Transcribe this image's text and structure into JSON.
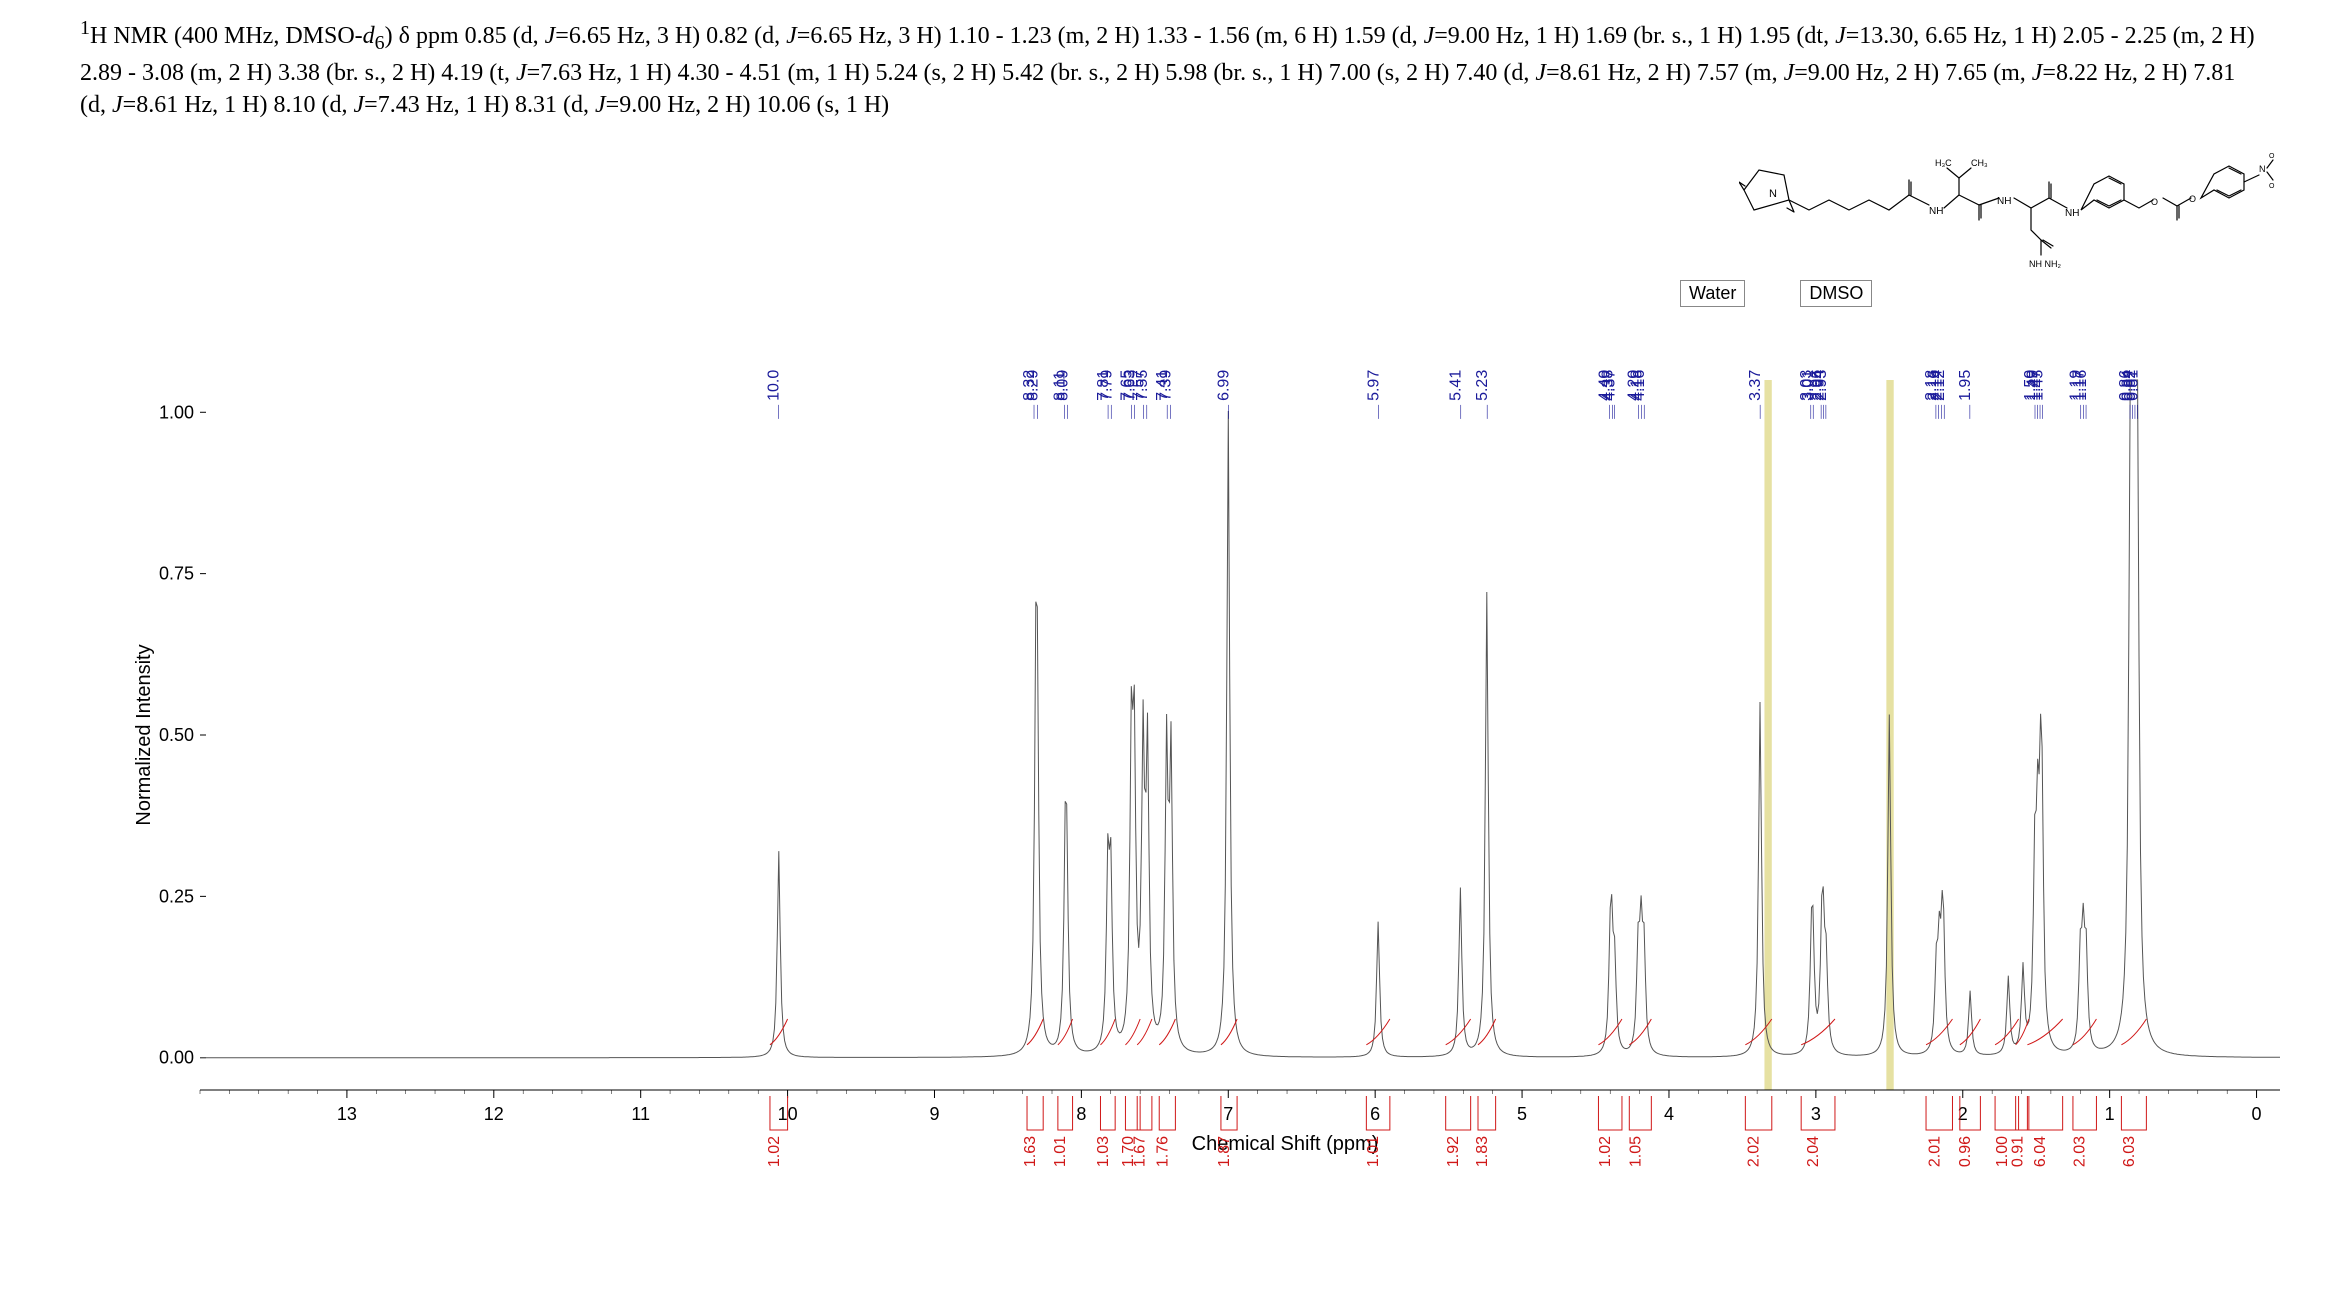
{
  "header": {
    "text_html": "<sup>1</sup>H NMR (400 MHz, DMSO-<i>d</i><sub>6</sub>) δ ppm 0.85 (d, <i>J</i>=6.65 Hz, 3 H) 0.82 (d, <i>J</i>=6.65 Hz, 3 H) 1.10 - 1.23 (m, 2 H) 1.33 - 1.56 (m, 6 H) 1.59 (d,  <i>J</i>=9.00 Hz, 1 H) 1.69 (br. s., 1 H) 1.95 (dt,  <i>J</i>=13.30, 6.65 Hz, 1 H) 2.05 - 2.25 (m, 2 H) 2.89 - 3.08 (m, 2 H) 3.38 (br. s., 2 H) 4.19 (t,  <i>J</i>=7.63 Hz, 1 H) 4.30 - 4.51 (m, 1 H) 5.24 (s, 2 H) 5.42 (br. s., 2 H) 5.98 (br. s., 1 H) 7.00 (s, 2 H) 7.40 (d,  <i>J</i>=8.61 Hz, 2 H) 7.57 (m, <i>J</i>=9.00 Hz, 2 H) 7.65 (m, <i>J</i>=8.22 Hz, 2 H) 7.81 (d, <i>J</i>=8.61 Hz, 1 H) 8.10 (d, <i>J</i>=7.43 Hz, 1 H) 8.31 (d, <i>J</i>=9.00 Hz, 2 H) 10.06 (s, 1 H)"
  },
  "structure_label": "Molecular structure (maleimide-linker-Val-Cit-PAB-pNP carbonate)",
  "solvents": {
    "water": "Water",
    "dmso": "DMSO"
  },
  "chart": {
    "type": "line",
    "xlabel": "Chemical Shift (ppm)",
    "ylabel": "Normalized Intensity",
    "xlim": [
      14,
      -0.5
    ],
    "ylim": [
      -0.05,
      1.05
    ],
    "yticks": [
      0,
      0.25,
      0.5,
      0.75,
      1.0
    ],
    "xticks": [
      13,
      12,
      11,
      10,
      9,
      8,
      7,
      6,
      5,
      4,
      3,
      2,
      1,
      0
    ],
    "minor_xtick_step": 0.2,
    "background_color": "#ffffff",
    "axis_color": "#000000",
    "spectrum_color": "#555555",
    "integral_curve_color": "#d01818",
    "highlight_color": "#dcd47a",
    "highlights": [
      {
        "from": 3.35,
        "to": 3.3
      },
      {
        "from": 2.52,
        "to": 2.47
      }
    ],
    "peak_labels": [
      "10.0621",
      "8.3224",
      "8.2998",
      "8.1138",
      "8.0952",
      "7.8182",
      "7.7966",
      "7.6586",
      "7.6380",
      "7.5773",
      "7.5548",
      "7.4158",
      "7.3942",
      "6.9977",
      "5.9785",
      "5.4175",
      "5.2374",
      "4.4042",
      "4.3856",
      "4.3719",
      "4.2065",
      "4.1869",
      "4.1683",
      "3.3792",
      "3.0346",
      "3.0179",
      "2.9641",
      "2.9484",
      "2.9318",
      "2.1828",
      "2.1642",
      "2.1446",
      "2.1260",
      "1.9517",
      "1.5082",
      "1.4916",
      "1.4740",
      "1.4563",
      "1.1969",
      "1.1783",
      "1.1607",
      "0.8611",
      "0.8444",
      "0.8278",
      "0.8112"
    ],
    "peaks": [
      {
        "cs": 10.06,
        "h": 0.32
      },
      {
        "cs": 8.31,
        "h": 0.45
      },
      {
        "cs": 8.3,
        "h": 0.43
      },
      {
        "cs": 8.11,
        "h": 0.25
      },
      {
        "cs": 8.1,
        "h": 0.24
      },
      {
        "cs": 7.82,
        "h": 0.27
      },
      {
        "cs": 7.8,
        "h": 0.26
      },
      {
        "cs": 7.66,
        "h": 0.44
      },
      {
        "cs": 7.64,
        "h": 0.43
      },
      {
        "cs": 7.58,
        "h": 0.46
      },
      {
        "cs": 7.55,
        "h": 0.45
      },
      {
        "cs": 7.42,
        "h": 0.46
      },
      {
        "cs": 7.39,
        "h": 0.45
      },
      {
        "cs": 7.0,
        "h": 1.0
      },
      {
        "cs": 5.98,
        "h": 0.21
      },
      {
        "cs": 5.42,
        "h": 0.26
      },
      {
        "cs": 5.24,
        "h": 0.72
      },
      {
        "cs": 4.4,
        "h": 0.13
      },
      {
        "cs": 4.39,
        "h": 0.14
      },
      {
        "cs": 4.37,
        "h": 0.13
      },
      {
        "cs": 4.21,
        "h": 0.15
      },
      {
        "cs": 4.19,
        "h": 0.17
      },
      {
        "cs": 4.17,
        "h": 0.15
      },
      {
        "cs": 3.38,
        "h": 0.55
      },
      {
        "cs": 3.03,
        "h": 0.14
      },
      {
        "cs": 3.02,
        "h": 0.14
      },
      {
        "cs": 2.96,
        "h": 0.14
      },
      {
        "cs": 2.95,
        "h": 0.14
      },
      {
        "cs": 2.93,
        "h": 0.13
      },
      {
        "cs": 2.5,
        "h": 0.53
      },
      {
        "cs": 2.18,
        "h": 0.12
      },
      {
        "cs": 2.16,
        "h": 0.14
      },
      {
        "cs": 2.14,
        "h": 0.14
      },
      {
        "cs": 2.13,
        "h": 0.12
      },
      {
        "cs": 1.95,
        "h": 0.1
      },
      {
        "cs": 1.69,
        "h": 0.12
      },
      {
        "cs": 1.59,
        "h": 0.13
      },
      {
        "cs": 1.51,
        "h": 0.26
      },
      {
        "cs": 1.49,
        "h": 0.28
      },
      {
        "cs": 1.47,
        "h": 0.28
      },
      {
        "cs": 1.46,
        "h": 0.26
      },
      {
        "cs": 1.2,
        "h": 0.14
      },
      {
        "cs": 1.18,
        "h": 0.16
      },
      {
        "cs": 1.16,
        "h": 0.14
      },
      {
        "cs": 0.86,
        "h": 0.76
      },
      {
        "cs": 0.84,
        "h": 0.78
      },
      {
        "cs": 0.83,
        "h": 0.76
      },
      {
        "cs": 0.81,
        "h": 0.72
      }
    ],
    "integrals": [
      {
        "from": 10.12,
        "to": 10.0,
        "value": "1.02"
      },
      {
        "from": 8.37,
        "to": 8.26,
        "value": "1.63"
      },
      {
        "from": 8.16,
        "to": 8.06,
        "value": "1.01"
      },
      {
        "from": 7.87,
        "to": 7.77,
        "value": "1.03"
      },
      {
        "from": 7.7,
        "to": 7.6,
        "value": "1.70"
      },
      {
        "from": 7.62,
        "to": 7.52,
        "value": "1.67"
      },
      {
        "from": 7.47,
        "to": 7.36,
        "value": "1.76"
      },
      {
        "from": 7.05,
        "to": 6.94,
        "value": "1.87"
      },
      {
        "from": 6.06,
        "to": 5.9,
        "value": "1.01"
      },
      {
        "from": 5.52,
        "to": 5.35,
        "value": "1.92"
      },
      {
        "from": 5.3,
        "to": 5.18,
        "value": "1.83"
      },
      {
        "from": 4.48,
        "to": 4.32,
        "value": "1.02"
      },
      {
        "from": 4.27,
        "to": 4.12,
        "value": "1.05"
      },
      {
        "from": 3.48,
        "to": 3.3,
        "value": "2.02"
      },
      {
        "from": 3.1,
        "to": 2.87,
        "value": "2.04"
      },
      {
        "from": 2.25,
        "to": 2.07,
        "value": "2.01"
      },
      {
        "from": 2.02,
        "to": 1.88,
        "value": "0.96"
      },
      {
        "from": 1.78,
        "to": 1.62,
        "value": "1.00"
      },
      {
        "from": 1.64,
        "to": 1.55,
        "value": "0.91"
      },
      {
        "from": 1.56,
        "to": 1.32,
        "value": "6.04"
      },
      {
        "from": 1.25,
        "to": 1.09,
        "value": "2.03"
      },
      {
        "from": 0.92,
        "to": 0.75,
        "value": "6.03"
      }
    ]
  }
}
